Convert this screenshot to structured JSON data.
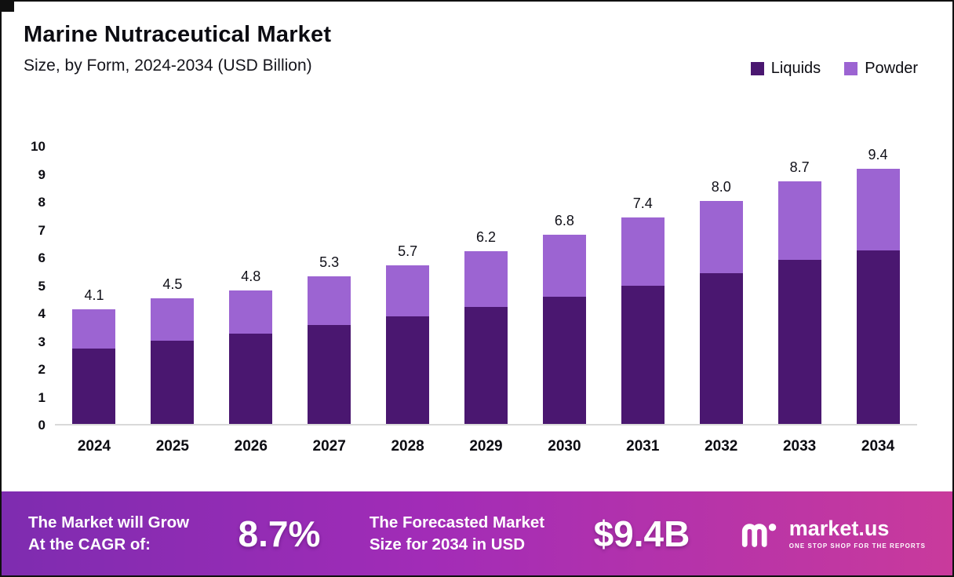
{
  "header": {
    "title": "Marine Nutraceutical Market",
    "subtitle": "Size, by Form, 2024-2034 (USD Billion)"
  },
  "legend": [
    {
      "label": "Liquids",
      "color": "#4a1770"
    },
    {
      "label": "Powder",
      "color": "#9c64d2"
    }
  ],
  "chart_data": {
    "type": "bar",
    "stacked": true,
    "title": "Marine Nutraceutical Market",
    "subtitle": "Size, by Form, 2024-2034 (USD Billion)",
    "categories": [
      "2024",
      "2025",
      "2026",
      "2027",
      "2028",
      "2029",
      "2030",
      "2031",
      "2032",
      "2033",
      "2034"
    ],
    "series": [
      {
        "name": "Liquids",
        "color": "#4a1770",
        "values": [
          2.7,
          3.0,
          3.25,
          3.55,
          3.85,
          4.2,
          4.55,
          4.95,
          5.4,
          5.9,
          6.4
        ]
      },
      {
        "name": "Powder",
        "color": "#9c64d2",
        "values": [
          1.4,
          1.5,
          1.55,
          1.75,
          1.85,
          2.0,
          2.25,
          2.45,
          2.6,
          2.8,
          3.0
        ]
      }
    ],
    "totals": [
      4.1,
      4.5,
      4.8,
      5.3,
      5.7,
      6.2,
      6.8,
      7.4,
      8.0,
      8.7,
      9.4
    ],
    "xlabel": "",
    "ylabel": "",
    "ylim": [
      0,
      10
    ],
    "yticks": [
      0,
      1,
      2,
      3,
      4,
      5,
      6,
      7,
      8,
      9,
      10
    ],
    "grid": false,
    "legend_position": "top-right"
  },
  "banner": {
    "left_line1": "The Market will Grow",
    "left_line2": "At the CAGR of:",
    "cagr_value": "8.7%",
    "mid_line1": "The Forecasted Market",
    "mid_line2": "Size for 2034 in USD",
    "forecast_value": "$9.4B",
    "logo_text": "market.us",
    "logo_tagline": "ONE STOP SHOP FOR THE REPORTS"
  }
}
